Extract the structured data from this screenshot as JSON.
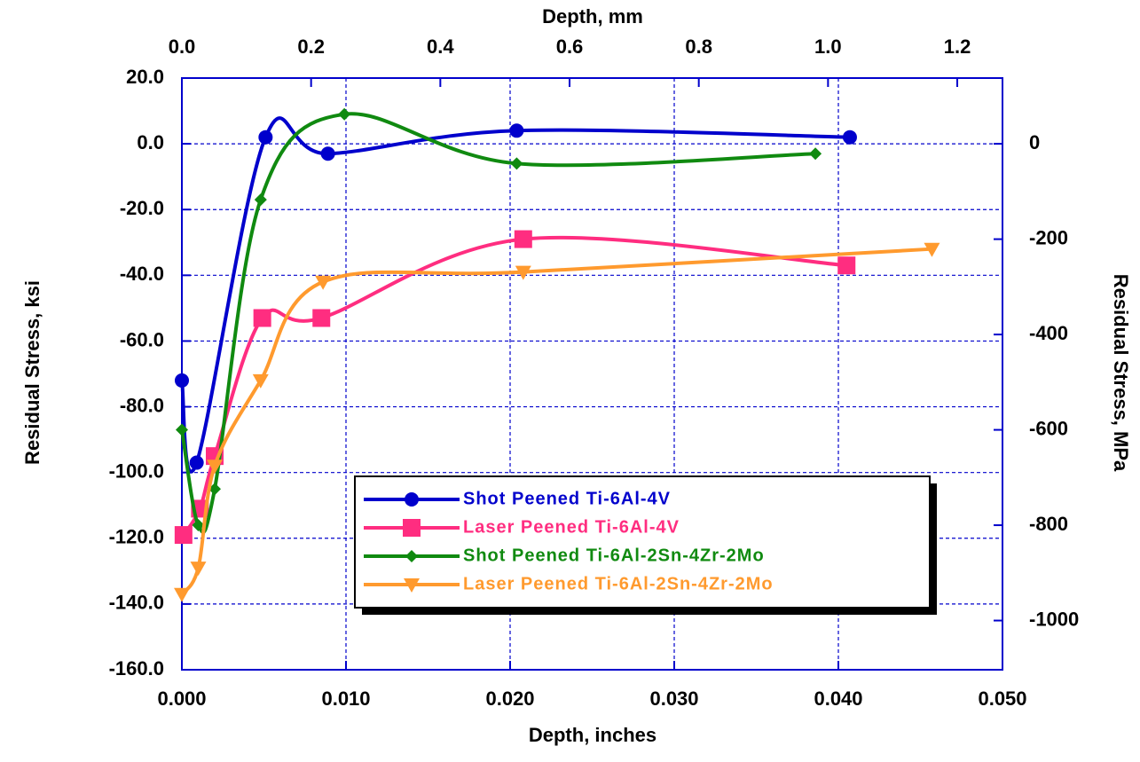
{
  "chart_data": {
    "type": "line",
    "xlabel": "Depth, inches",
    "ylabel": "Residual Stress, ksi",
    "x2label": "Depth, mm",
    "y2label": "Residual Stress, MPa",
    "xlim": [
      0,
      0.05
    ],
    "xticks": [
      {
        "value": 0,
        "label": "0.000"
      },
      {
        "value": 0.01,
        "label": "0.010"
      },
      {
        "value": 0.02,
        "label": "0.020"
      },
      {
        "value": 0.03,
        "label": "0.030"
      },
      {
        "value": 0.04,
        "label": "0.040"
      },
      {
        "value": 0.05,
        "label": "0.050"
      }
    ],
    "ylim": [
      -160,
      20
    ],
    "yticks": [
      {
        "value": 20,
        "label": "20.0"
      },
      {
        "value": 0,
        "label": "0.0"
      },
      {
        "value": -20,
        "label": "-20.0"
      },
      {
        "value": -40,
        "label": "-40.0"
      },
      {
        "value": -60,
        "label": "-60.0"
      },
      {
        "value": -80,
        "label": "-80.0"
      },
      {
        "value": -100,
        "label": "-100.0"
      },
      {
        "value": -120,
        "label": "-120.0"
      },
      {
        "value": -140,
        "label": "-140.0"
      },
      {
        "value": -160,
        "label": "-160.0"
      }
    ],
    "x2lim": [
      0,
      1.27
    ],
    "x2ticks": [
      {
        "value": 0,
        "label": "0.0"
      },
      0.2,
      0.4,
      0.6,
      0.8,
      {
        "value": 1,
        "label": "1.0"
      },
      1.2
    ],
    "y2lim": [
      -1103.2,
      137.9
    ],
    "y2ticks": [
      0,
      -200,
      -400,
      -600,
      -800,
      -1000
    ],
    "grid": true,
    "series": [
      {
        "name": "Shot Peened Ti-6Al-4V",
        "color": "#0000cc",
        "marker": "circle",
        "x": [
          0.0,
          0.0009,
          0.0051,
          0.0089,
          0.0204,
          0.0407
        ],
        "values": [
          -72,
          -97,
          2,
          -3,
          4,
          2
        ]
      },
      {
        "name": "Laser Peened Ti-6Al-4V",
        "color": "#ff2d80",
        "marker": "square",
        "x": [
          0.0001,
          0.0011,
          0.002,
          0.0049,
          0.0085,
          0.0208,
          0.0405
        ],
        "values": [
          -119,
          -111,
          -95,
          -53,
          -53,
          -29,
          -37
        ]
      },
      {
        "name": "Shot Peened Ti-6Al-2Sn-4Zr-2Mo",
        "color": "#108a10",
        "marker": "diamond",
        "x": [
          0.0,
          0.001,
          0.002,
          0.0048,
          0.0099,
          0.0204,
          0.0386
        ],
        "values": [
          -87,
          -116,
          -105,
          -17,
          9,
          -6,
          -3
        ]
      },
      {
        "name": "Laser Peened Ti-6Al-2Sn-4Zr-2Mo",
        "color": "#ff9a2e",
        "marker": "triangle-down",
        "x": [
          0.0,
          0.001,
          0.002,
          0.0048,
          0.0086,
          0.0208,
          0.0457
        ],
        "values": [
          -137,
          -129,
          -98,
          -72,
          -42,
          -39,
          -32
        ]
      }
    ]
  }
}
